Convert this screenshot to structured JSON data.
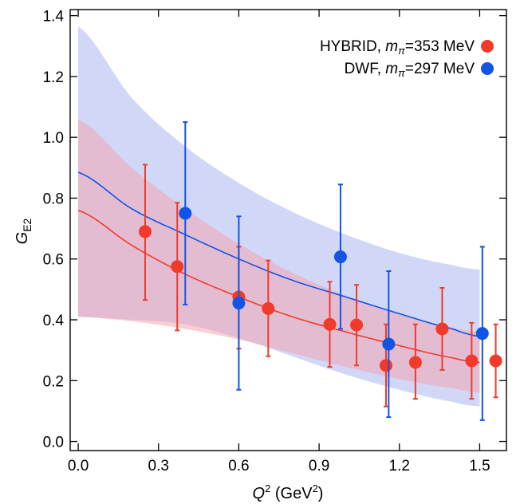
{
  "chart_data": {
    "type": "scatter",
    "xlabel": {
      "base": "Q",
      "sup": "2",
      "unit_pre": " (GeV",
      "unit_sup": "2",
      "unit_post": ")"
    },
    "ylabel": {
      "base": "G",
      "sub": "E2"
    },
    "xlim": [
      -0.03,
      1.6
    ],
    "ylim": [
      -0.03,
      1.42
    ],
    "x_ticks": [
      {
        "value": 0.0,
        "label": "0.0"
      },
      {
        "value": 0.3,
        "label": "0.3"
      },
      {
        "value": 0.6,
        "label": "0.6"
      },
      {
        "value": 0.9,
        "label": "0.9"
      },
      {
        "value": 1.2,
        "label": "1.2"
      },
      {
        "value": 1.5,
        "label": "1.5"
      }
    ],
    "y_ticks": [
      {
        "value": 0.0,
        "label": "0.0"
      },
      {
        "value": 0.2,
        "label": "0.2"
      },
      {
        "value": 0.4,
        "label": "0.4"
      },
      {
        "value": 0.6,
        "label": "0.6"
      },
      {
        "value": 0.8,
        "label": "0.8"
      },
      {
        "value": 1.0,
        "label": "1.0"
      },
      {
        "value": 1.2,
        "label": "1.2"
      },
      {
        "value": 1.4,
        "label": "1.4"
      }
    ],
    "grid": false,
    "legend_position": "top-right",
    "series": [
      {
        "key": "hybrid",
        "name": "HYBRID, ",
        "mass_symbol": "m",
        "mass_sub": "π",
        "mass_value": "=353 MeV",
        "color": "#f23a2a",
        "band_color": "#f4a6b2",
        "points": [
          {
            "x": 0.25,
            "y": 0.69,
            "lo": 0.465,
            "hi": 0.91
          },
          {
            "x": 0.37,
            "y": 0.575,
            "lo": 0.365,
            "hi": 0.785
          },
          {
            "x": 0.6,
            "y": 0.475,
            "lo": 0.305,
            "hi": 0.64
          },
          {
            "x": 0.71,
            "y": 0.437,
            "lo": 0.28,
            "hi": 0.595
          },
          {
            "x": 0.94,
            "y": 0.385,
            "lo": 0.245,
            "hi": 0.525
          },
          {
            "x": 1.04,
            "y": 0.383,
            "lo": 0.25,
            "hi": 0.515
          },
          {
            "x": 1.15,
            "y": 0.25,
            "lo": 0.115,
            "hi": 0.385
          },
          {
            "x": 1.26,
            "y": 0.26,
            "lo": 0.14,
            "hi": 0.385
          },
          {
            "x": 1.36,
            "y": 0.37,
            "lo": 0.235,
            "hi": 0.505
          },
          {
            "x": 1.47,
            "y": 0.265,
            "lo": 0.14,
            "hi": 0.39
          },
          {
            "x": 1.56,
            "y": 0.265,
            "lo": 0.145,
            "hi": 0.385
          }
        ],
        "fit": {
          "x": [
            0,
            0.2,
            0.4,
            0.6,
            0.8,
            1.0,
            1.2,
            1.4,
            1.5
          ],
          "y": [
            0.76,
            0.645,
            0.55,
            0.475,
            0.41,
            0.36,
            0.315,
            0.275,
            0.26
          ],
          "band_lo": [
            0.41,
            0.395,
            0.37,
            0.335,
            0.29,
            0.245,
            0.205,
            0.175,
            0.16
          ],
          "band_hi": [
            1.06,
            0.9,
            0.765,
            0.65,
            0.555,
            0.48,
            0.42,
            0.375,
            0.36
          ]
        }
      },
      {
        "key": "dwf",
        "name": "DWF, ",
        "mass_symbol": "m",
        "mass_sub": "π",
        "mass_value": "=297 MeV",
        "color": "#1254e6",
        "band_color": "#b8c3f2",
        "points": [
          {
            "x": 0.4,
            "y": 0.75,
            "lo": 0.45,
            "hi": 1.05
          },
          {
            "x": 0.6,
            "y": 0.455,
            "lo": 0.17,
            "hi": 0.74
          },
          {
            "x": 0.98,
            "y": 0.607,
            "lo": 0.37,
            "hi": 0.845
          },
          {
            "x": 1.16,
            "y": 0.32,
            "lo": 0.08,
            "hi": 0.56
          },
          {
            "x": 1.51,
            "y": 0.355,
            "lo": 0.07,
            "hi": 0.64
          }
        ],
        "fit": {
          "x": [
            0,
            0.2,
            0.4,
            0.6,
            0.8,
            1.0,
            1.2,
            1.4,
            1.5
          ],
          "y": [
            0.885,
            0.765,
            0.68,
            0.6,
            0.53,
            0.475,
            0.42,
            0.37,
            0.345
          ],
          "band_lo": [
            0.41,
            0.4,
            0.385,
            0.34,
            0.28,
            0.22,
            0.17,
            0.13,
            0.115
          ],
          "band_hi": [
            1.365,
            1.13,
            0.97,
            0.85,
            0.755,
            0.68,
            0.62,
            0.58,
            0.565
          ]
        }
      }
    ]
  }
}
